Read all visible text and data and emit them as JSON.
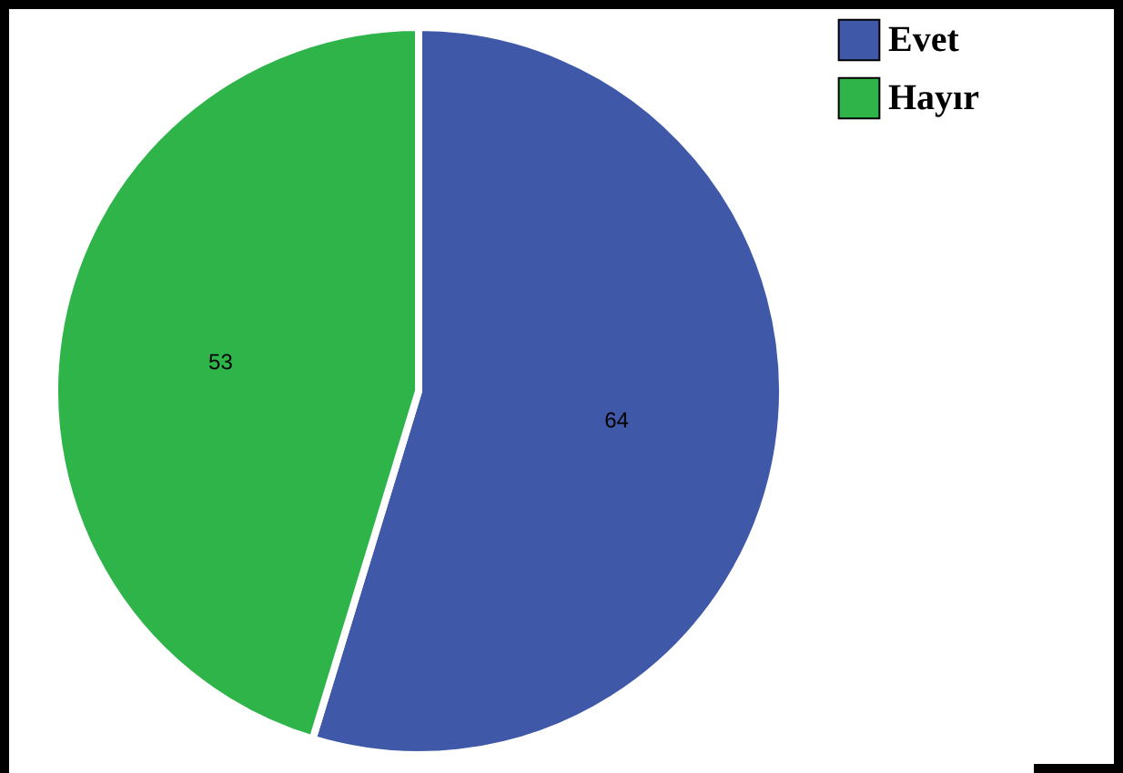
{
  "chart_data": {
    "type": "pie",
    "categories": [
      "Evet",
      "Hayır"
    ],
    "values": [
      64,
      53
    ],
    "colors": [
      "#3f58a8",
      "#2fb44a"
    ],
    "data_labels": true,
    "legend": "top right"
  }
}
